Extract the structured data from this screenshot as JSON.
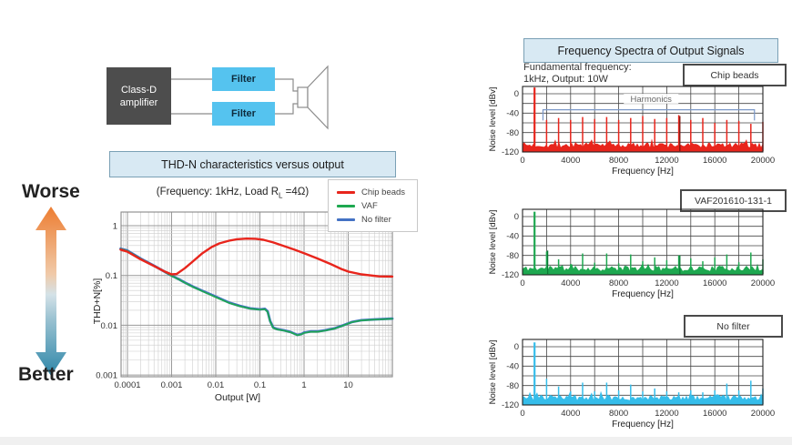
{
  "page": {
    "background": "#ffffff"
  },
  "block_diagram": {
    "amp_line1": "Class-D",
    "amp_line2": "amplifier",
    "filter_top": "Filter",
    "filter_bottom": "Filter",
    "amp_color": "#4d4d4d",
    "filter_color": "#55c3ef"
  },
  "worse_better": {
    "worse": "Worse",
    "better": "Better",
    "worse_color": "#ed7d31",
    "better_color": "#2e86a8"
  },
  "thd_panel": {
    "title": "THD-N characteristics versus output",
    "subtitle_prefix": "(Frequency: 1kHz, Load R",
    "subtitle_sub": "L",
    "subtitle_suffix": " =4Ω)",
    "legend": [
      {
        "label": "Chip beads",
        "color": "#e8251c"
      },
      {
        "label": "VAF",
        "color": "#1ea850"
      },
      {
        "label": "No filter",
        "color": "#4472c4"
      }
    ]
  },
  "spectra_panel": {
    "title": "Frequency Spectra of Output Signals",
    "note_line1": "Fundamental frequency:",
    "note_line2": "1kHz, Output: 10W",
    "badges": [
      "Chip beads",
      "VAF201610-131-1",
      "No filter"
    ]
  },
  "chart_data": [
    {
      "type": "line",
      "title": "THD-N characteristics versus output",
      "xlabel": "Output [W]",
      "ylabel": "THD+N[%]",
      "xscale": "log",
      "yscale": "log",
      "xlim": [
        0.0001,
        100
      ],
      "ylim": [
        0.001,
        2
      ],
      "x_ticks": [
        "0.0001",
        "0.001",
        "0.01",
        "0.1",
        "1",
        "10"
      ],
      "y_ticks": [
        "1",
        "0.1",
        "0.01",
        "0.001"
      ],
      "grid": true,
      "legend_position": "top-right",
      "series": [
        {
          "name": "No filter",
          "color": "#4472c4",
          "points": [
            [
              7e-05,
              0.345
            ],
            [
              0.0001,
              0.315
            ],
            [
              0.0002,
              0.218
            ],
            [
              0.0004,
              0.157
            ],
            [
              0.0007,
              0.119
            ],
            [
              0.001,
              0.099
            ],
            [
              0.0015,
              0.083
            ],
            [
              0.002,
              0.072
            ],
            [
              0.003,
              0.06
            ],
            [
              0.005,
              0.049
            ],
            [
              0.008,
              0.041
            ],
            [
              0.012,
              0.035
            ],
            [
              0.02,
              0.0285
            ],
            [
              0.035,
              0.0245
            ],
            [
              0.06,
              0.0218
            ],
            [
              0.1,
              0.0208
            ],
            [
              0.13,
              0.0213
            ],
            [
              0.15,
              0.019
            ],
            [
              0.17,
              0.0122
            ],
            [
              0.2,
              0.009
            ],
            [
              0.25,
              0.0083
            ],
            [
              0.35,
              0.0079
            ],
            [
              0.5,
              0.0073
            ],
            [
              0.7,
              0.0064
            ],
            [
              0.85,
              0.0066
            ],
            [
              1,
              0.0071
            ],
            [
              1.4,
              0.0075
            ],
            [
              2,
              0.0075
            ],
            [
              3,
              0.0079
            ],
            [
              5,
              0.0087
            ],
            [
              8,
              0.0101
            ],
            [
              12,
              0.0116
            ],
            [
              20,
              0.0126
            ],
            [
              40,
              0.0131
            ],
            [
              100,
              0.0136
            ]
          ]
        },
        {
          "name": "VAF",
          "color": "#1ea850",
          "points": [
            [
              7e-05,
              0.34
            ],
            [
              0.0001,
              0.31
            ],
            [
              0.0002,
              0.215
            ],
            [
              0.0004,
              0.155
            ],
            [
              0.0007,
              0.118
            ],
            [
              0.001,
              0.098
            ],
            [
              0.0015,
              0.082
            ],
            [
              0.002,
              0.071
            ],
            [
              0.003,
              0.059
            ],
            [
              0.005,
              0.048
            ],
            [
              0.008,
              0.04
            ],
            [
              0.012,
              0.034
            ],
            [
              0.02,
              0.028
            ],
            [
              0.035,
              0.024
            ],
            [
              0.06,
              0.0215
            ],
            [
              0.1,
              0.0205
            ],
            [
              0.13,
              0.021
            ],
            [
              0.15,
              0.0185
            ],
            [
              0.17,
              0.012
            ],
            [
              0.2,
              0.0088
            ],
            [
              0.25,
              0.0082
            ],
            [
              0.35,
              0.0078
            ],
            [
              0.5,
              0.0072
            ],
            [
              0.7,
              0.0063
            ],
            [
              0.85,
              0.0065
            ],
            [
              1,
              0.007
            ],
            [
              1.4,
              0.0074
            ],
            [
              2,
              0.0074
            ],
            [
              3,
              0.0078
            ],
            [
              5,
              0.0086
            ],
            [
              8,
              0.01
            ],
            [
              12,
              0.0115
            ],
            [
              20,
              0.0125
            ],
            [
              40,
              0.013
            ],
            [
              100,
              0.0135
            ]
          ]
        },
        {
          "name": "Chip beads",
          "color": "#e8251c",
          "points": [
            [
              7e-05,
              0.33
            ],
            [
              0.0001,
              0.3
            ],
            [
              0.0002,
              0.21
            ],
            [
              0.0004,
              0.155
            ],
            [
              0.0007,
              0.12
            ],
            [
              0.001,
              0.105
            ],
            [
              0.0013,
              0.107
            ],
            [
              0.002,
              0.14
            ],
            [
              0.003,
              0.19
            ],
            [
              0.005,
              0.28
            ],
            [
              0.008,
              0.37
            ],
            [
              0.012,
              0.44
            ],
            [
              0.02,
              0.5
            ],
            [
              0.03,
              0.535
            ],
            [
              0.05,
              0.55
            ],
            [
              0.08,
              0.545
            ],
            [
              0.12,
              0.52
            ],
            [
              0.2,
              0.46
            ],
            [
              0.35,
              0.39
            ],
            [
              0.6,
              0.33
            ],
            [
              1,
              0.28
            ],
            [
              2,
              0.22
            ],
            [
              4,
              0.17
            ],
            [
              7,
              0.135
            ],
            [
              10,
              0.12
            ],
            [
              20,
              0.105
            ],
            [
              50,
              0.096
            ],
            [
              100,
              0.095
            ]
          ]
        }
      ]
    },
    {
      "type": "line",
      "title": "Chip beads",
      "xlabel": "Frequency [Hz]",
      "ylabel": "Noise level [dBv]",
      "xlim": [
        0,
        20000
      ],
      "ylim": [
        -120,
        15
      ],
      "x_ticks": [
        "0",
        "4000",
        "8000",
        "12000",
        "16000",
        "20000"
      ],
      "y_ticks": [
        "0",
        "-40",
        "-80",
        "-120"
      ],
      "color": "#e8251c",
      "accent_color": "#7d150e",
      "fundamental": {
        "f": 1000,
        "level": 13
      },
      "harmonics": [
        [
          2000,
          -54
        ],
        [
          3000,
          -50
        ],
        [
          4000,
          -54
        ],
        [
          5000,
          -48
        ],
        [
          6000,
          -52
        ],
        [
          7000,
          -48
        ],
        [
          8000,
          -54
        ],
        [
          9000,
          -50
        ],
        [
          10000,
          -46
        ],
        [
          11000,
          -52
        ],
        [
          12000,
          -50
        ],
        [
          13000,
          -44
        ],
        [
          14000,
          -54
        ],
        [
          15000,
          -50
        ],
        [
          16000,
          -60
        ],
        [
          17000,
          -54
        ],
        [
          18000,
          -56
        ],
        [
          19000,
          -62
        ],
        [
          20000,
          -58
        ]
      ],
      "accent_peaks": [
        [
          13000,
          -46
        ]
      ],
      "noise_floor_db": -106,
      "annotation": {
        "label": "Harmonics",
        "from": 1700,
        "to": 19300,
        "level": -33,
        "drop": -55,
        "label_f": 10700,
        "label_level": -15
      }
    },
    {
      "type": "line",
      "title": "VAF201610-131-1",
      "xlabel": "Frequency [Hz]",
      "ylabel": "Noise level [dBv]",
      "xlim": [
        0,
        20000
      ],
      "ylim": [
        -120,
        15
      ],
      "x_ticks": [
        "0",
        "4000",
        "8000",
        "12000",
        "16000",
        "20000"
      ],
      "y_ticks": [
        "0",
        "-40",
        "-80",
        "-120"
      ],
      "color": "#1ea850",
      "accent_color": "#0c7a36",
      "fundamental": {
        "f": 1000,
        "level": 10
      },
      "harmonics": [
        [
          2000,
          -72
        ],
        [
          3000,
          -88
        ],
        [
          4000,
          -98
        ],
        [
          5000,
          -76
        ],
        [
          6000,
          -95
        ],
        [
          7000,
          -76
        ],
        [
          8000,
          -96
        ],
        [
          9000,
          -78
        ],
        [
          10000,
          -92
        ],
        [
          11000,
          -84
        ],
        [
          12000,
          -90
        ],
        [
          13000,
          -80
        ],
        [
          14000,
          -86
        ],
        [
          15000,
          -92
        ],
        [
          16000,
          -84
        ],
        [
          17000,
          -78
        ],
        [
          18000,
          -94
        ],
        [
          19000,
          -74
        ],
        [
          20000,
          -88
        ]
      ],
      "accent_peaks": [
        [
          2000,
          -70
        ],
        [
          13000,
          -80
        ]
      ],
      "noise_floor_db": -107
    },
    {
      "type": "line",
      "title": "No filter",
      "xlabel": "Frequency [Hz]",
      "ylabel": "Noise level [dBv]",
      "xlim": [
        0,
        20000
      ],
      "ylim": [
        -120,
        15
      ],
      "x_ticks": [
        "0",
        "4000",
        "8000",
        "12000",
        "16000",
        "20000"
      ],
      "y_ticks": [
        "0",
        "-40",
        "-80",
        "-120"
      ],
      "color": "#35bdea",
      "accent_color": "#1a93c2",
      "fundamental": {
        "f": 1000,
        "level": 9
      },
      "harmonics": [
        [
          2000,
          -66
        ],
        [
          3000,
          -82
        ],
        [
          4000,
          -92
        ],
        [
          5000,
          -74
        ],
        [
          6000,
          -92
        ],
        [
          7000,
          -74
        ],
        [
          8000,
          -90
        ],
        [
          9000,
          -78
        ],
        [
          10000,
          -92
        ],
        [
          11000,
          -86
        ],
        [
          12000,
          -92
        ],
        [
          13000,
          -94
        ],
        [
          14000,
          -90
        ],
        [
          15000,
          -94
        ],
        [
          16000,
          -90
        ],
        [
          17000,
          -76
        ],
        [
          18000,
          -90
        ],
        [
          19000,
          -70
        ],
        [
          20000,
          -86
        ]
      ],
      "accent_peaks": [],
      "noise_floor_db": -105
    }
  ]
}
